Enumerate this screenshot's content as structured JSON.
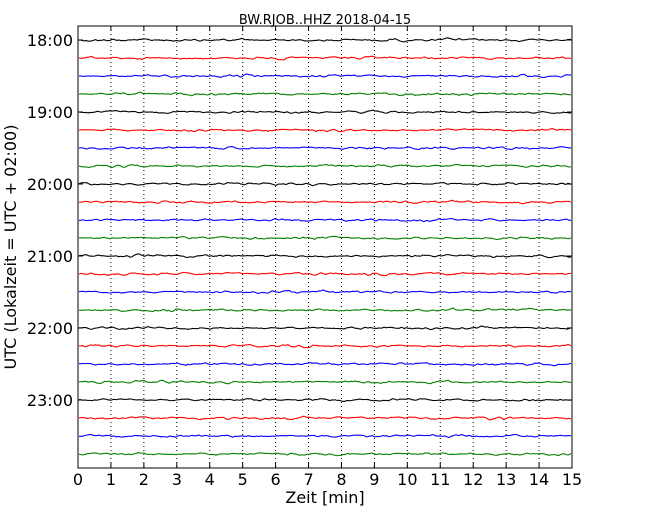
{
  "chart_data": {
    "type": "line",
    "title": "BW.RJOB..HHZ 2018-04-15",
    "xlabel": "Zeit  [min]",
    "ylabel": "UTC (Lokalzeit = UTC + 02:00)",
    "xlim": [
      0,
      15
    ],
    "x_ticks": [
      "0",
      "1",
      "2",
      "3",
      "4",
      "5",
      "6",
      "7",
      "8",
      "9",
      "10",
      "11",
      "12",
      "13",
      "14",
      "15"
    ],
    "y_tick_labels": [
      "18:00",
      "19:00",
      "20:00",
      "21:00",
      "22:00",
      "23:00"
    ],
    "grid": "x dotted",
    "legend": "none",
    "trace_colors": [
      "#000000",
      "#ff0000",
      "#0000ff",
      "#008000"
    ],
    "series": [
      {
        "start": "18:00"
      },
      {
        "start": "18:15"
      },
      {
        "start": "18:30"
      },
      {
        "start": "18:45"
      },
      {
        "start": "19:00"
      },
      {
        "start": "19:15"
      },
      {
        "start": "19:30"
      },
      {
        "start": "19:45"
      },
      {
        "start": "20:00"
      },
      {
        "start": "20:15"
      },
      {
        "start": "20:30"
      },
      {
        "start": "20:45"
      },
      {
        "start": "21:00"
      },
      {
        "start": "21:15"
      },
      {
        "start": "21:30"
      },
      {
        "start": "21:45"
      },
      {
        "start": "22:00"
      },
      {
        "start": "22:15"
      },
      {
        "start": "22:30"
      },
      {
        "start": "22:45"
      },
      {
        "start": "23:00"
      },
      {
        "start": "23:15"
      },
      {
        "start": "23:30"
      },
      {
        "start": "23:45"
      }
    ]
  }
}
